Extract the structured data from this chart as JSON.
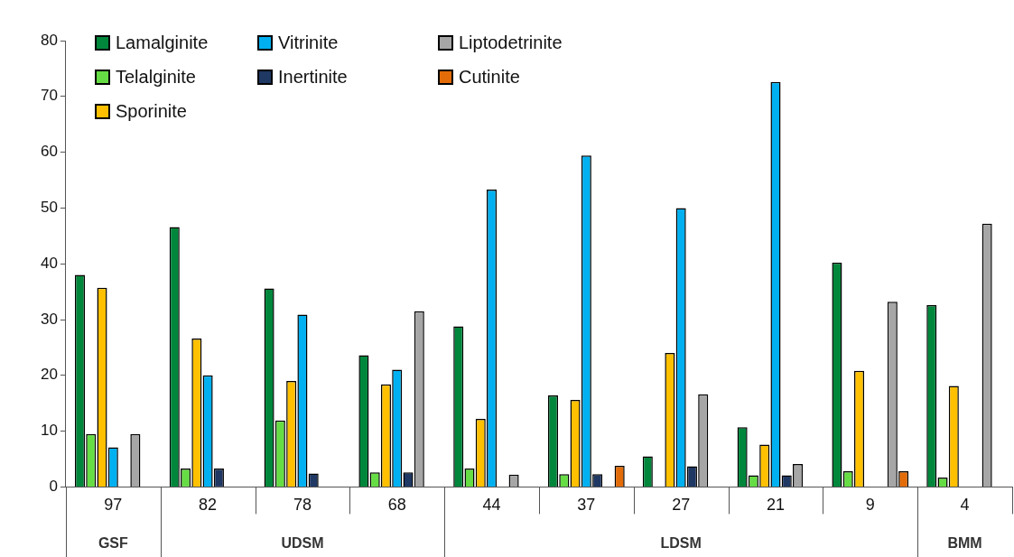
{
  "chart_data": {
    "type": "bar",
    "categories": [
      "97",
      "82",
      "78",
      "68",
      "44",
      "37",
      "27",
      "21",
      "9",
      "4"
    ],
    "series": [
      {
        "name": "Lamalginite",
        "color": "#00873c",
        "values": [
          38,
          46.6,
          35.6,
          23.6,
          28.8,
          16.4,
          5.5,
          10.7,
          40.2,
          32.6
        ]
      },
      {
        "name": "Telalginite",
        "color": "#66dd44",
        "values": [
          9.5,
          3.3,
          11.9,
          2.6,
          3.3,
          2.3,
          0,
          2.1,
          2.8,
          1.7
        ]
      },
      {
        "name": "Sporinite",
        "color": "#ffc000",
        "values": [
          35.7,
          26.6,
          19,
          18.4,
          12.2,
          15.6,
          24,
          7.6,
          20.8,
          18.1
        ]
      },
      {
        "name": "Vitrinite",
        "color": "#00b0f0",
        "values": [
          7.1,
          20,
          30.9,
          21,
          53.3,
          59.4,
          50,
          72.6,
          0,
          0
        ]
      },
      {
        "name": "Inertinite",
        "color": "#1f3864",
        "values": [
          0,
          3.3,
          2.4,
          2.6,
          0,
          2.3,
          3.7,
          2.1,
          0,
          0
        ]
      },
      {
        "name": "Liptodetrinite",
        "color": "#a6a6a6",
        "values": [
          9.5,
          0,
          0,
          31.5,
          2.2,
          0,
          16.6,
          4.1,
          33.2,
          47.2
        ]
      },
      {
        "name": "Cutinite",
        "color": "#e36c09",
        "values": [
          0,
          0,
          0,
          0,
          0,
          3.8,
          0,
          0,
          2.8,
          0
        ]
      }
    ],
    "ylim": [
      0,
      80
    ],
    "yticks": [
      0,
      10,
      20,
      30,
      40,
      50,
      60,
      70,
      80
    ],
    "grid": false,
    "legend": "top left",
    "annotations": [
      "GSF",
      "UDSM",
      "LDSM",
      "BMM"
    ]
  }
}
